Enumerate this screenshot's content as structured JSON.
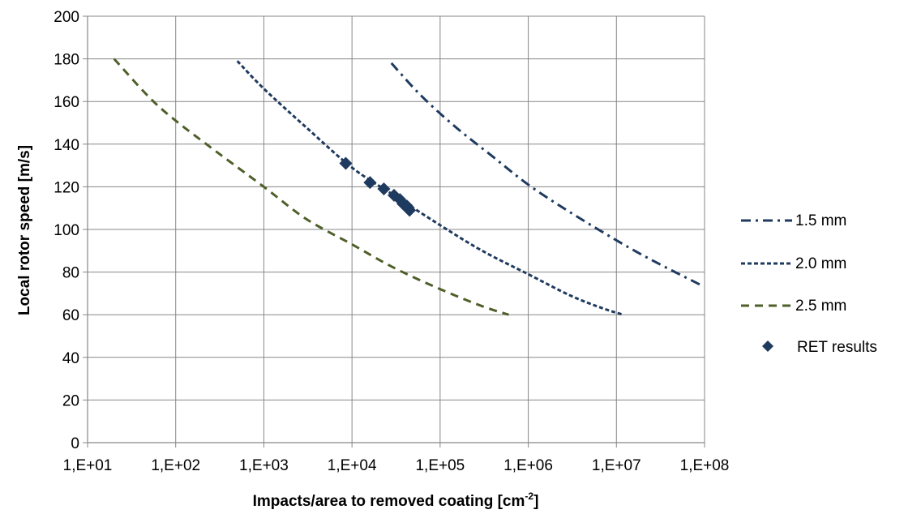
{
  "chart_data": {
    "type": "line",
    "xlabel": "Impacts/area to removed coating [cm",
    "xlabel_sup": "-2",
    "xlabel_end": "]",
    "ylabel": "Local rotor speed [m/s]",
    "x_scale": "log",
    "xlim": [
      10,
      100000000
    ],
    "ylim": [
      0,
      200
    ],
    "x_tick_labels": [
      "1,E+01",
      "1,E+02",
      "1,E+03",
      "1,E+04",
      "1,E+05",
      "1,E+06",
      "1,E+07",
      "1,E+08"
    ],
    "y_ticks": [
      0,
      20,
      40,
      60,
      80,
      100,
      120,
      140,
      160,
      180,
      200
    ],
    "grid": true,
    "legend_position": "right",
    "series": [
      {
        "name": "1.5 mm",
        "style": "dash-dot",
        "color": "#1f3a5f",
        "x": [
          28000,
          60000,
          150000,
          400000,
          1000000,
          3000000,
          12000000,
          30000000,
          90000000
        ],
        "y": [
          178,
          163,
          148,
          134,
          121,
          108,
          93,
          84,
          74
        ]
      },
      {
        "name": "2.0 mm",
        "style": "short-dash",
        "color": "#1f3a5f",
        "x": [
          500,
          1000,
          3000,
          10000,
          30000,
          100000,
          300000,
          1000000,
          3000000,
          7000000,
          12000000
        ],
        "y": [
          179,
          166,
          148,
          129,
          116,
          102,
          90,
          79,
          69,
          63,
          60
        ]
      },
      {
        "name": "2.5 mm",
        "style": "long-dash",
        "color": "#4f5f2a",
        "x": [
          20,
          50,
          100,
          300,
          1000,
          3000,
          10000,
          30000,
          100000,
          300000,
          600000
        ],
        "y": [
          180,
          162,
          151,
          136,
          120,
          105,
          93,
          82,
          72,
          64,
          60
        ]
      },
      {
        "name": "RET results",
        "style": "marker",
        "color": "#1f3a5f",
        "x": [
          8500,
          16000,
          23000,
          30000,
          35000,
          38000,
          42000,
          45000
        ],
        "y": [
          131,
          122,
          119,
          116,
          114,
          112,
          111,
          109
        ]
      }
    ]
  }
}
